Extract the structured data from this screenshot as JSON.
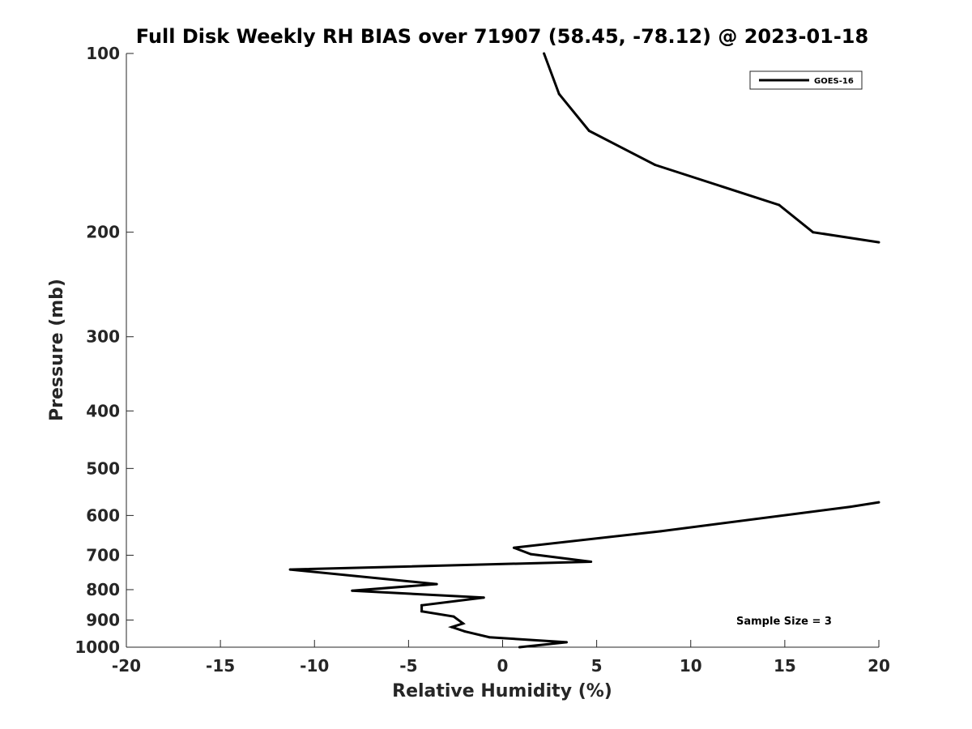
{
  "chart_data": {
    "type": "line",
    "title": "Full Disk Weekly RH BIAS over 71907 (58.45, -78.12) @ 2023-01-18",
    "xlabel": "Relative Humidity (%)",
    "ylabel": "Pressure (mb)",
    "xlim": [
      -20,
      20
    ],
    "ylim": [
      100,
      1000
    ],
    "y_scale": "log",
    "y_reversed": true,
    "grid": false,
    "legend_position": "top-right",
    "x_ticks": [
      "-20",
      "-15",
      "-10",
      "-5",
      "0",
      "5",
      "10",
      "15",
      "20"
    ],
    "y_ticks": [
      "100",
      "200",
      "300",
      "400",
      "500",
      "600",
      "700",
      "800",
      "900",
      "1000"
    ],
    "series": [
      {
        "name": "GOES-16",
        "color": "#000000",
        "segments": [
          [
            {
              "x": 2.2,
              "p": 100
            },
            {
              "x": 3.0,
              "p": 117
            },
            {
              "x": 4.6,
              "p": 135
            },
            {
              "x": 8.1,
              "p": 154
            },
            {
              "x": 14.7,
              "p": 180
            },
            {
              "x": 16.5,
              "p": 200
            },
            {
              "x": 20.0,
              "p": 208
            }
          ],
          [
            {
              "x": 20.0,
              "p": 570
            },
            {
              "x": 18.5,
              "p": 580
            },
            {
              "x": 8.4,
              "p": 638
            },
            {
              "x": 0.6,
              "p": 680
            },
            {
              "x": 1.5,
              "p": 697
            },
            {
              "x": 4.7,
              "p": 718
            },
            {
              "x": -11.3,
              "p": 740
            },
            {
              "x": -3.5,
              "p": 783
            },
            {
              "x": -8.0,
              "p": 803
            },
            {
              "x": -1.0,
              "p": 825
            },
            {
              "x": -4.3,
              "p": 850
            },
            {
              "x": -4.3,
              "p": 870
            },
            {
              "x": -2.6,
              "p": 888
            },
            {
              "x": -2.1,
              "p": 912
            },
            {
              "x": -2.7,
              "p": 925
            },
            {
              "x": -2.0,
              "p": 941
            },
            {
              "x": -0.7,
              "p": 962
            },
            {
              "x": 3.4,
              "p": 981
            },
            {
              "x": 0.9,
              "p": 1000
            }
          ]
        ]
      }
    ],
    "annotation": "Sample Size = 3"
  }
}
